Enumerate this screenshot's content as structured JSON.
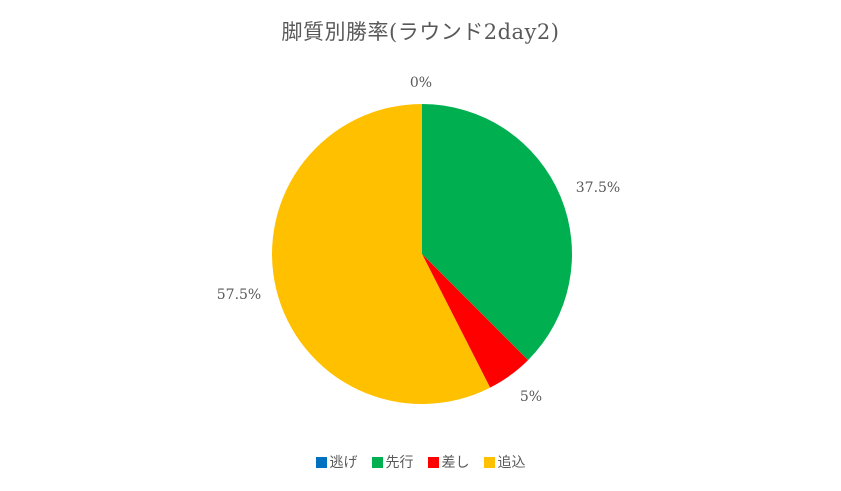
{
  "chart_data": {
    "type": "pie",
    "title": "脚質別勝率(ラウンド2day2)",
    "categories": [
      "逃げ",
      "先行",
      "差し",
      "追込"
    ],
    "values": [
      0,
      37.5,
      5,
      57.5
    ],
    "labels": [
      "0%",
      "37.5%",
      "5%",
      "57.5%"
    ],
    "colors": [
      "#0070C0",
      "#00B050",
      "#FF0000",
      "#FFC000"
    ],
    "legend_position": "bottom",
    "start_angle": "12 o'clock",
    "direction": "clockwise"
  }
}
